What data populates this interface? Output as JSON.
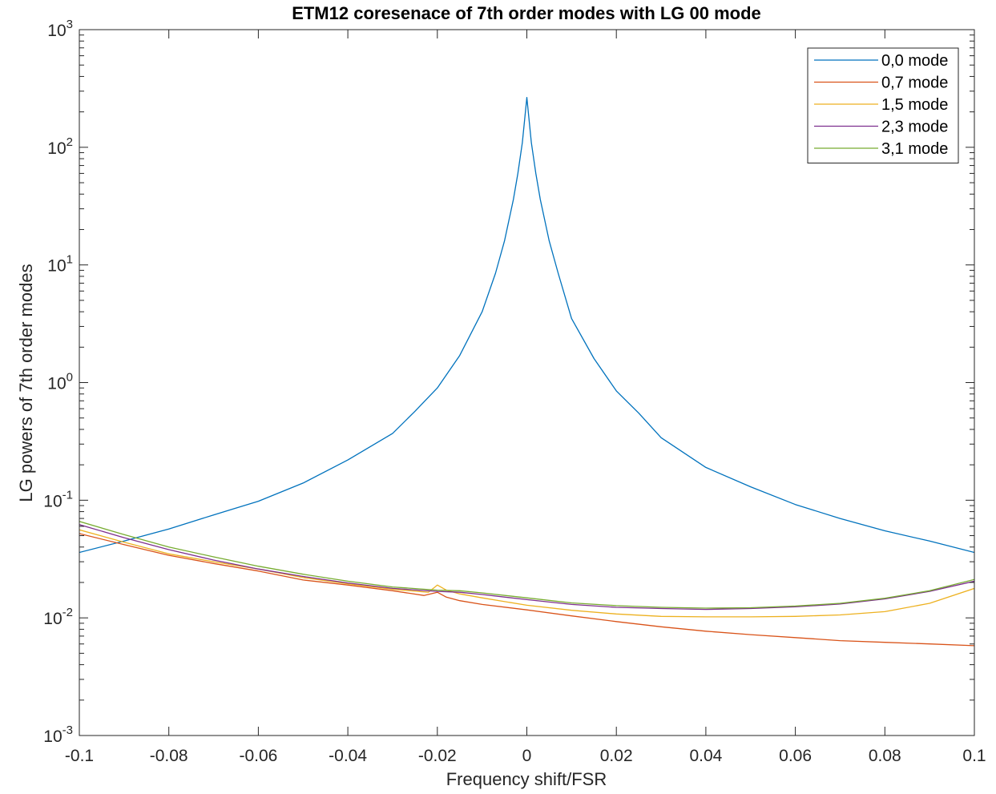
{
  "chart_data": {
    "type": "line",
    "title": "ETM12 coresenace of 7th order modes with LG 00 mode",
    "xlabel": "Frequency shift/FSR",
    "ylabel": "LG powers of 7th order modes",
    "xlim": [
      -0.1,
      0.1
    ],
    "ylim": [
      0.001,
      1000
    ],
    "yscale": "log",
    "grid": false,
    "legend_position": "top-right",
    "x_ticks": [
      "-0.1",
      "-0.08",
      "-0.06",
      "-0.04",
      "-0.02",
      "0",
      "0.02",
      "0.04",
      "0.06",
      "0.08",
      "0.1"
    ],
    "x_tick_values": [
      -0.1,
      -0.08,
      -0.06,
      -0.04,
      -0.02,
      0,
      0.02,
      0.04,
      0.06,
      0.08,
      0.1
    ],
    "y_ticks": [
      {
        "base": "10",
        "exp": "-3",
        "value": 0.001
      },
      {
        "base": "10",
        "exp": "-2",
        "value": 0.01
      },
      {
        "base": "10",
        "exp": "-1",
        "value": 0.1
      },
      {
        "base": "10",
        "exp": "0",
        "value": 1
      },
      {
        "base": "10",
        "exp": "1",
        "value": 10
      },
      {
        "base": "10",
        "exp": "2",
        "value": 100
      },
      {
        "base": "10",
        "exp": "3",
        "value": 1000
      }
    ],
    "series": [
      {
        "name": "0,0 mode",
        "color": "#0072BD",
        "x": [
          -0.1,
          -0.09,
          -0.08,
          -0.07,
          -0.06,
          -0.05,
          -0.04,
          -0.03,
          -0.025,
          -0.02,
          -0.015,
          -0.01,
          -0.007,
          -0.005,
          -0.003,
          -0.002,
          -0.001,
          0,
          0.001,
          0.002,
          0.003,
          0.005,
          0.007,
          0.01,
          0.015,
          0.02,
          0.025,
          0.03,
          0.04,
          0.05,
          0.06,
          0.07,
          0.08,
          0.09,
          0.1
        ],
        "y": [
          0.036,
          0.045,
          0.057,
          0.075,
          0.098,
          0.14,
          0.22,
          0.37,
          0.57,
          0.9,
          1.7,
          4.0,
          8.5,
          16,
          36,
          60,
          110,
          265,
          110,
          60,
          36,
          16,
          8.5,
          3.5,
          1.6,
          0.85,
          0.55,
          0.34,
          0.19,
          0.13,
          0.092,
          0.07,
          0.055,
          0.045,
          0.036
        ]
      },
      {
        "name": "0,7 mode",
        "color": "#D95319",
        "x": [
          -0.1,
          -0.09,
          -0.08,
          -0.07,
          -0.06,
          -0.05,
          -0.04,
          -0.03,
          -0.023,
          -0.02,
          -0.018,
          -0.015,
          -0.01,
          0,
          0.01,
          0.02,
          0.03,
          0.04,
          0.05,
          0.06,
          0.07,
          0.08,
          0.09,
          0.1
        ],
        "y": [
          0.052,
          0.042,
          0.034,
          0.029,
          0.025,
          0.021,
          0.019,
          0.017,
          0.0155,
          0.0165,
          0.015,
          0.014,
          0.013,
          0.0117,
          0.0104,
          0.0093,
          0.0084,
          0.0077,
          0.0072,
          0.0068,
          0.0064,
          0.0062,
          0.006,
          0.0058
        ]
      },
      {
        "name": "1,5 mode",
        "color": "#EDB120",
        "x": [
          -0.1,
          -0.09,
          -0.08,
          -0.07,
          -0.06,
          -0.05,
          -0.04,
          -0.03,
          -0.022,
          -0.02,
          -0.018,
          -0.015,
          -0.01,
          0,
          0.01,
          0.02,
          0.03,
          0.04,
          0.05,
          0.06,
          0.07,
          0.08,
          0.09,
          0.1
        ],
        "y": [
          0.056,
          0.044,
          0.035,
          0.03,
          0.026,
          0.022,
          0.0195,
          0.0175,
          0.0165,
          0.019,
          0.0172,
          0.016,
          0.0148,
          0.0128,
          0.0116,
          0.0108,
          0.0103,
          0.0102,
          0.0102,
          0.0103,
          0.0106,
          0.0113,
          0.0133,
          0.0178
        ]
      },
      {
        "name": "2,3 mode",
        "color": "#7E2F8E",
        "x": [
          -0.1,
          -0.09,
          -0.08,
          -0.07,
          -0.06,
          -0.05,
          -0.04,
          -0.03,
          -0.02,
          -0.015,
          -0.01,
          0,
          0.01,
          0.02,
          0.03,
          0.04,
          0.05,
          0.06,
          0.07,
          0.08,
          0.09,
          0.1
        ],
        "y": [
          0.062,
          0.048,
          0.038,
          0.031,
          0.026,
          0.0225,
          0.0198,
          0.0178,
          0.0168,
          0.0165,
          0.0158,
          0.0143,
          0.013,
          0.0123,
          0.012,
          0.0118,
          0.012,
          0.0124,
          0.0131,
          0.0145,
          0.0168,
          0.0205
        ]
      },
      {
        "name": "3,1 mode",
        "color": "#77AC30",
        "x": [
          -0.1,
          -0.09,
          -0.08,
          -0.07,
          -0.06,
          -0.05,
          -0.04,
          -0.03,
          -0.02,
          -0.015,
          -0.01,
          0,
          0.01,
          0.02,
          0.03,
          0.04,
          0.05,
          0.06,
          0.07,
          0.08,
          0.09,
          0.1
        ],
        "y": [
          0.066,
          0.051,
          0.04,
          0.033,
          0.0275,
          0.0235,
          0.0205,
          0.0183,
          0.0172,
          0.017,
          0.0163,
          0.0148,
          0.0134,
          0.0127,
          0.0123,
          0.0121,
          0.0122,
          0.0126,
          0.0133,
          0.0147,
          0.017,
          0.0212
        ]
      }
    ]
  }
}
